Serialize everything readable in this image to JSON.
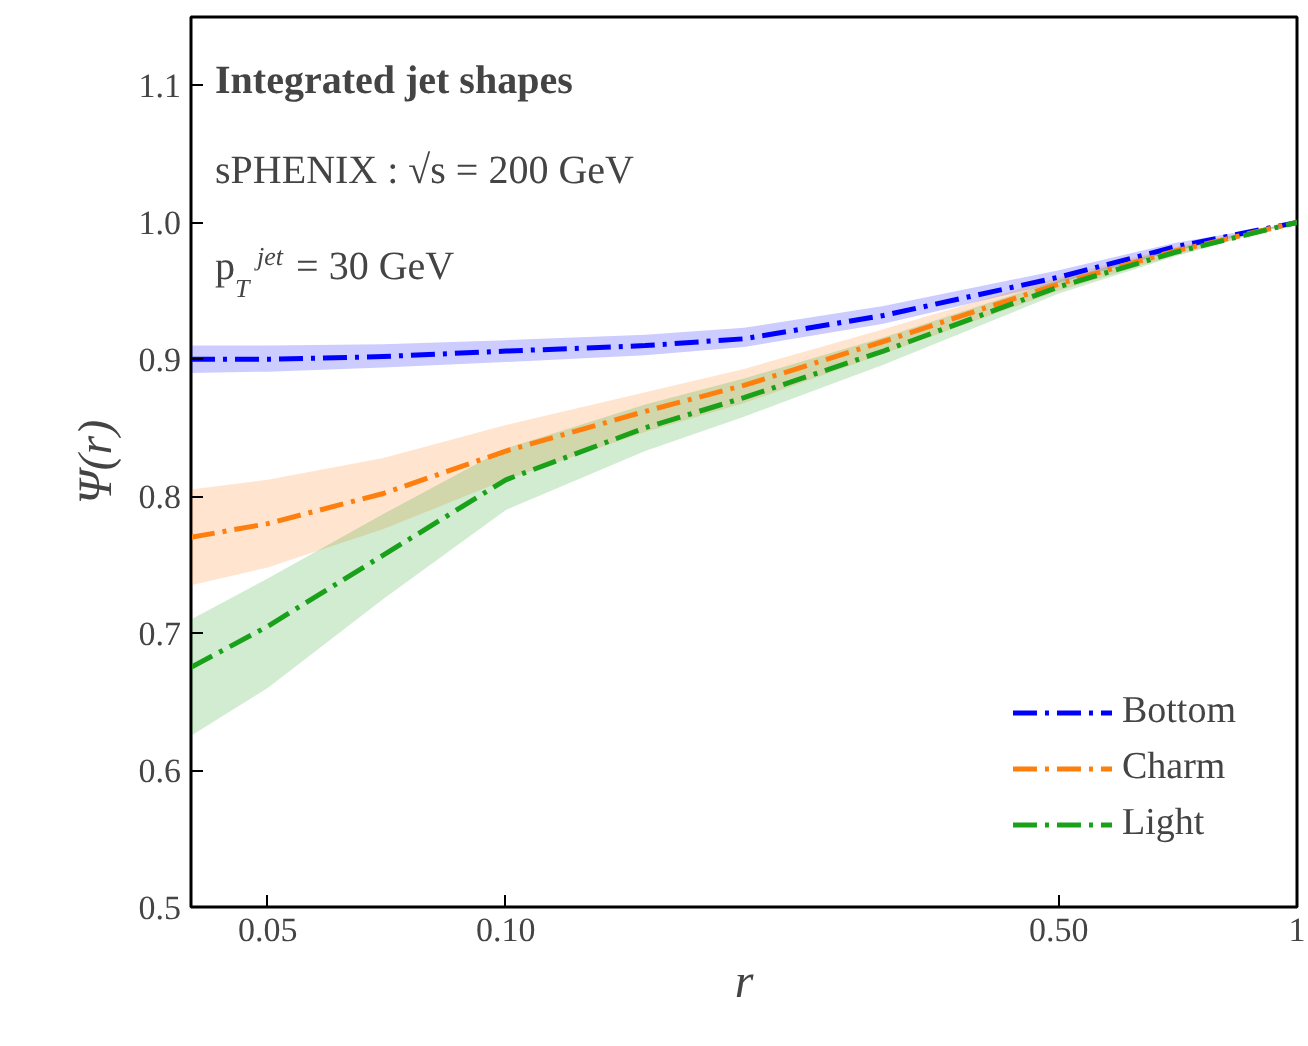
{
  "chart_data": {
    "type": "line",
    "title": "Integrated jet shapes",
    "annotations": [
      "sPHENIX :  √s = 200 GeV",
      "p$_{T}$$^{jet}$ = 30 GeV"
    ],
    "xlabel": "r",
    "ylabel": "Ψ(r)",
    "x": [
      0.04,
      0.05,
      0.07,
      0.1,
      0.15,
      0.2,
      0.3,
      0.5,
      0.7,
      1.0
    ],
    "series": [
      {
        "name": "Bottom",
        "color": "#0000ff",
        "values": [
          0.9,
          0.9,
          0.902,
          0.906,
          0.91,
          0.915,
          0.932,
          0.96,
          0.982,
          1.0
        ],
        "lower": [
          0.89,
          0.891,
          0.894,
          0.898,
          0.903,
          0.909,
          0.926,
          0.956,
          0.979,
          1.0
        ],
        "upper": [
          0.91,
          0.91,
          0.911,
          0.914,
          0.918,
          0.923,
          0.939,
          0.965,
          0.985,
          1.0
        ]
      },
      {
        "name": "Charm",
        "color": "#ff7f0e",
        "values": [
          0.77,
          0.78,
          0.802,
          0.833,
          0.862,
          0.881,
          0.913,
          0.955,
          0.979,
          1.0
        ],
        "lower": [
          0.735,
          0.748,
          0.776,
          0.812,
          0.847,
          0.868,
          0.904,
          0.95,
          0.976,
          1.0
        ],
        "upper": [
          0.805,
          0.812,
          0.828,
          0.852,
          0.876,
          0.893,
          0.922,
          0.96,
          0.982,
          1.0
        ]
      },
      {
        "name": "Light",
        "color": "#1aa11a",
        "values": [
          0.675,
          0.705,
          0.757,
          0.812,
          0.85,
          0.872,
          0.906,
          0.953,
          0.978,
          1.0
        ],
        "lower": [
          0.625,
          0.66,
          0.725,
          0.79,
          0.833,
          0.858,
          0.896,
          0.948,
          0.975,
          1.0
        ],
        "upper": [
          0.71,
          0.74,
          0.787,
          0.835,
          0.867,
          0.886,
          0.916,
          0.958,
          0.981,
          1.0
        ]
      }
    ],
    "log": "x",
    "xlim": [
      0.04,
      1
    ],
    "ylim": [
      0.5,
      1.15
    ],
    "xticks": [
      0.05,
      {
        "value": 0.1,
        "label": "0.10"
      },
      {
        "value": 0.5,
        "label": "0.50"
      },
      1
    ],
    "yticks": [
      0.5,
      0.6,
      0.7,
      0.8,
      0.9,
      {
        "value": 1.0,
        "label": "1.0"
      },
      1.1
    ],
    "grid": false,
    "legend": "bottom right",
    "line_style": "dashed",
    "marker": "none"
  }
}
